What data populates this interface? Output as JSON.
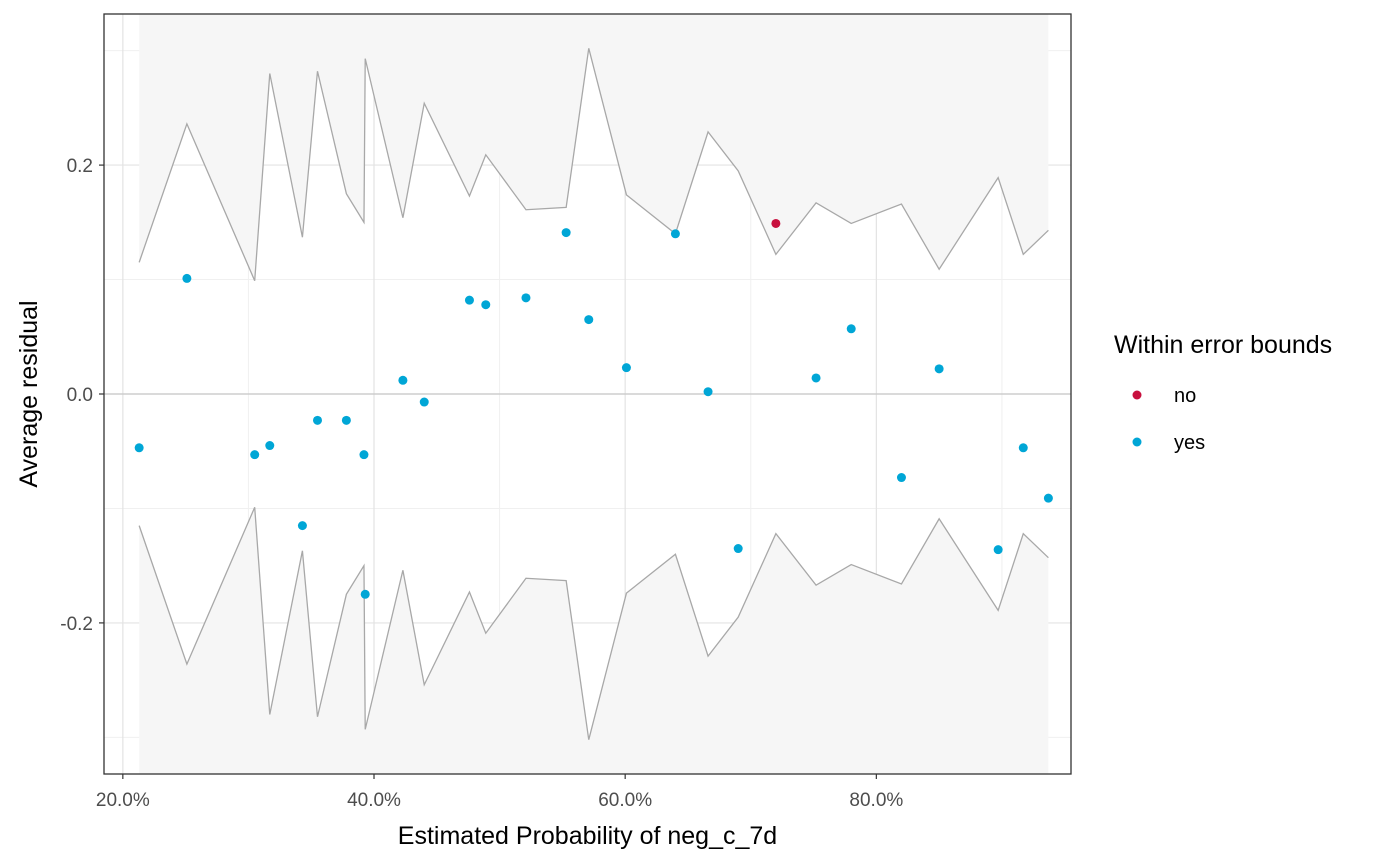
{
  "chart_data": {
    "type": "scatter",
    "xlabel": "Estimated Probability of neg_c_7d",
    "ylabel": "Average residual",
    "xlim": [
      0.185,
      0.955
    ],
    "ylim": [
      -0.332,
      0.332
    ],
    "x_ticks": [
      0.2,
      0.4,
      0.6,
      0.8
    ],
    "x_tick_labels": [
      "20.0%",
      "40.0%",
      "60.0%",
      "80.0%"
    ],
    "y_ticks": [
      0.2,
      0.0,
      -0.2
    ],
    "y_tick_labels": [
      "0.2",
      "0.0",
      "-0.2"
    ],
    "grid": true,
    "legend": {
      "title": "Within error bounds",
      "position": "right",
      "entries": [
        {
          "label": "no",
          "color": "#c8103e"
        },
        {
          "label": "yes",
          "color": "#00a6d6"
        }
      ]
    },
    "bounds": {
      "x": [
        0.213,
        0.251,
        0.305,
        0.317,
        0.343,
        0.355,
        0.378,
        0.392,
        0.393,
        0.423,
        0.44,
        0.476,
        0.489,
        0.521,
        0.553,
        0.571,
        0.601,
        0.64,
        0.666,
        0.69,
        0.72,
        0.752,
        0.78,
        0.82,
        0.85,
        0.897,
        0.917,
        0.937
      ],
      "upper": [
        0.115,
        0.236,
        0.099,
        0.28,
        0.137,
        0.282,
        0.175,
        0.15,
        0.293,
        0.154,
        0.254,
        0.173,
        0.209,
        0.161,
        0.163,
        0.302,
        0.174,
        0.14,
        0.229,
        0.195,
        0.122,
        0.167,
        0.149,
        0.166,
        0.109,
        0.189,
        0.122,
        0.143
      ]
    },
    "series": [
      {
        "name": "no",
        "color": "#c8103e",
        "x": [
          0.72
        ],
        "y": [
          0.149
        ]
      },
      {
        "name": "yes",
        "color": "#00a6d6",
        "x": [
          0.213,
          0.251,
          0.305,
          0.317,
          0.343,
          0.355,
          0.378,
          0.392,
          0.393,
          0.423,
          0.44,
          0.476,
          0.489,
          0.521,
          0.553,
          0.571,
          0.601,
          0.64,
          0.666,
          0.69,
          0.752,
          0.78,
          0.82,
          0.85,
          0.897,
          0.917,
          0.937
        ],
        "y": [
          -0.047,
          0.101,
          -0.053,
          -0.045,
          -0.115,
          -0.023,
          -0.023,
          -0.053,
          -0.175,
          0.012,
          -0.007,
          0.082,
          0.078,
          0.084,
          0.141,
          0.065,
          0.023,
          0.14,
          0.002,
          -0.135,
          0.014,
          0.057,
          -0.073,
          0.022,
          -0.136,
          -0.047,
          -0.091
        ]
      }
    ]
  }
}
